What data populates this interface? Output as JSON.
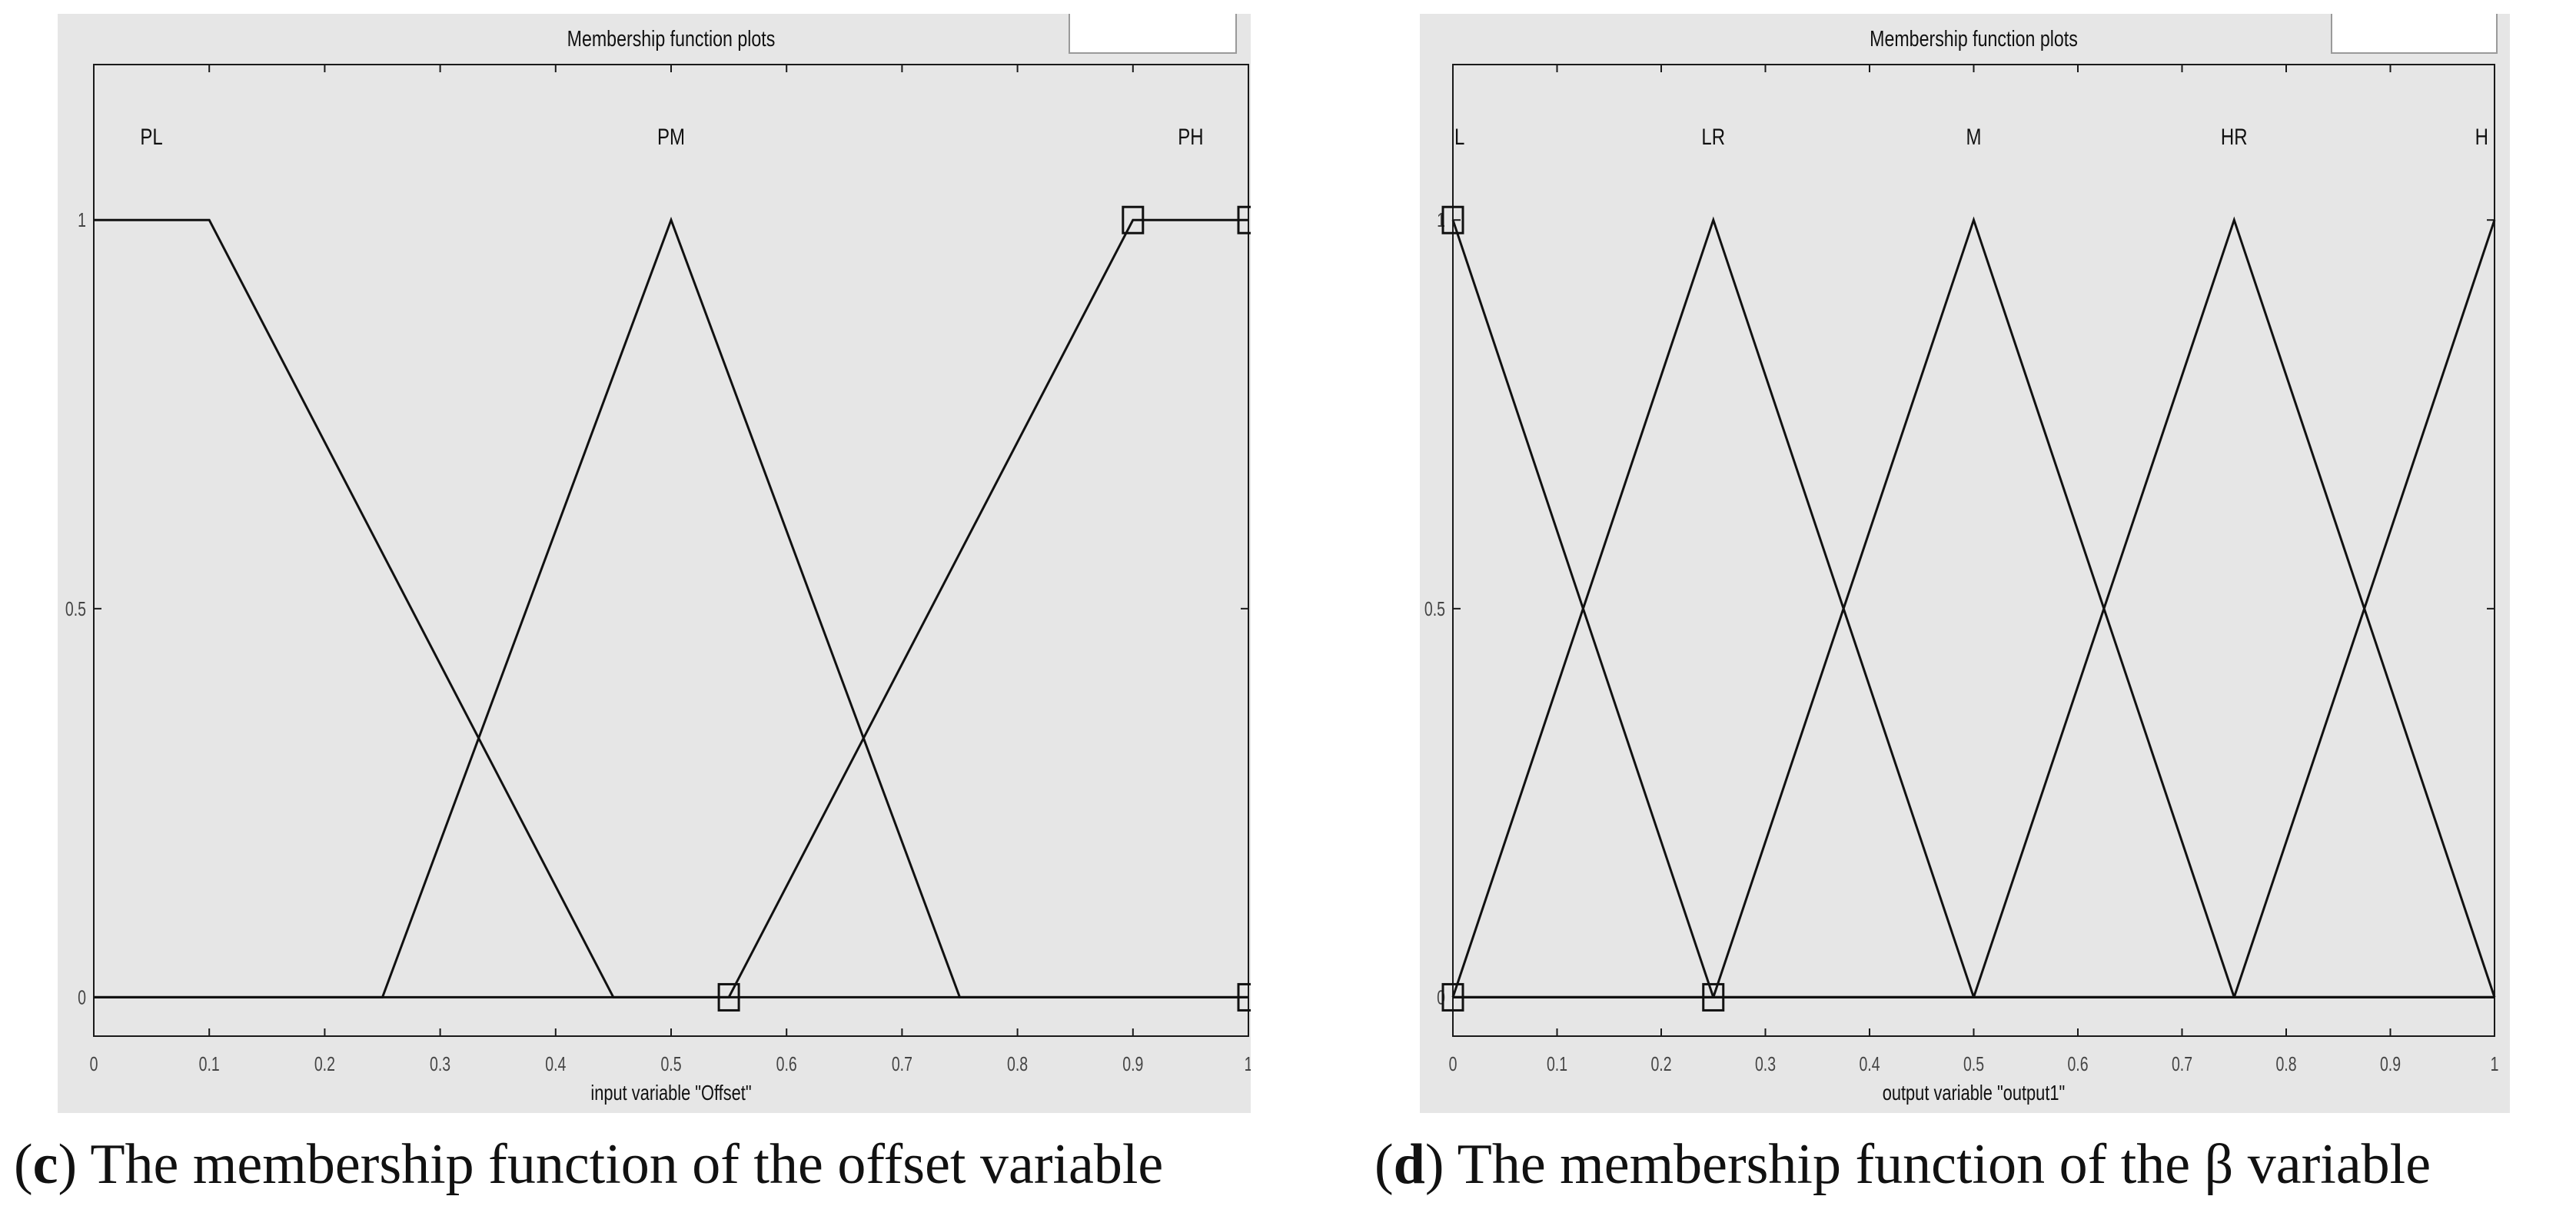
{
  "figures": [
    {
      "id": "c",
      "caption": {
        "open": "(",
        "letter": "c",
        "rest": ") The membership function of the offset variable"
      }
    },
    {
      "id": "d",
      "caption": {
        "open": "(",
        "letter": "d",
        "rest": ") The membership function of the β variable"
      }
    }
  ],
  "chart_data": [
    {
      "type": "line",
      "title": "Membership function plots",
      "xlabel": "input variable \"Offset\"",
      "ylabel": "",
      "xlim": [
        0,
        1
      ],
      "ylim": [
        -0.05,
        1.2
      ],
      "xticks": [
        "0",
        "0.1",
        "0.2",
        "0.3",
        "0.4",
        "0.5",
        "0.6",
        "0.7",
        "0.8",
        "0.9",
        "1"
      ],
      "yticks": [
        "0",
        "0.5",
        "1"
      ],
      "grid": false,
      "series": [
        {
          "name": "PL",
          "label_x": 0.05,
          "x": [
            0,
            0.1,
            0.45,
            1
          ],
          "y": [
            1,
            1,
            0,
            0
          ]
        },
        {
          "name": "PM",
          "label_x": 0.5,
          "x": [
            0,
            0.25,
            0.5,
            0.75,
            1
          ],
          "y": [
            0,
            0,
            1,
            0,
            0
          ]
        },
        {
          "name": "PH",
          "label_x": 0.95,
          "x": [
            0,
            0.55,
            0.9,
            1
          ],
          "y": [
            0,
            0,
            1,
            1
          ]
        }
      ],
      "selected_markers": [
        {
          "x": 0.55,
          "y": 0
        },
        {
          "x": 0.9,
          "y": 1
        },
        {
          "x": 1,
          "y": 1
        },
        {
          "x": 1,
          "y": 0
        }
      ]
    },
    {
      "type": "line",
      "title": "Membership function plots",
      "xlabel": "output variable \"output1\"",
      "ylabel": "",
      "xlim": [
        0,
        1
      ],
      "ylim": [
        -0.05,
        1.2
      ],
      "xticks": [
        "0",
        "0.1",
        "0.2",
        "0.3",
        "0.4",
        "0.5",
        "0.6",
        "0.7",
        "0.8",
        "0.9",
        "1"
      ],
      "yticks": [
        "0",
        "0.5",
        "1"
      ],
      "grid": false,
      "series": [
        {
          "name": "L",
          "label_x": 0.0,
          "x": [
            0,
            0.25,
            1
          ],
          "y": [
            1,
            0,
            0
          ]
        },
        {
          "name": "LR",
          "label_x": 0.25,
          "x": [
            0,
            0.25,
            0.5,
            1
          ],
          "y": [
            0,
            1,
            0,
            0
          ]
        },
        {
          "name": "M",
          "label_x": 0.5,
          "x": [
            0,
            0.25,
            0.5,
            0.75,
            1
          ],
          "y": [
            0,
            0,
            1,
            0,
            0
          ]
        },
        {
          "name": "HR",
          "label_x": 0.75,
          "x": [
            0,
            0.5,
            0.75,
            1
          ],
          "y": [
            0,
            0,
            1,
            0
          ]
        },
        {
          "name": "H",
          "label_x": 1.0,
          "x": [
            0,
            0.75,
            1
          ],
          "y": [
            0,
            0,
            1
          ]
        }
      ],
      "selected_markers": [
        {
          "x": 0,
          "y": 1
        },
        {
          "x": 0,
          "y": 0
        },
        {
          "x": 0.25,
          "y": 0
        }
      ]
    }
  ]
}
